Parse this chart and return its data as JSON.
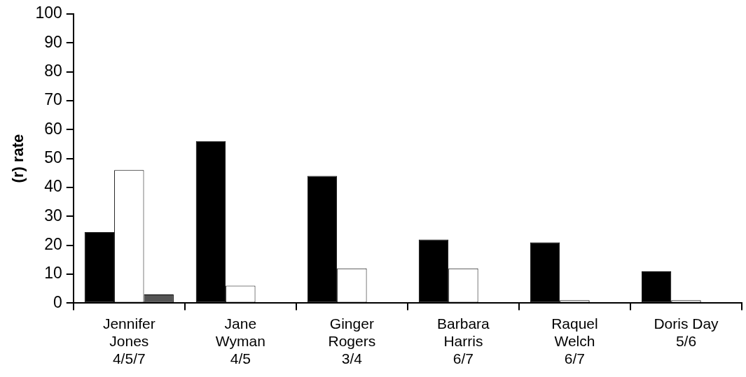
{
  "chart_data": {
    "type": "bar",
    "ylabel": "(r) rate",
    "categories": [
      "Jennifer\nJones\n4/5/7",
      "Jane\nWyman\n4/5",
      "Ginger\nRogers\n3/4",
      "Barbara\nHarris\n6/7",
      "Raquel\nWelch\n6/7",
      "Doris Day\n5/6"
    ],
    "series": [
      {
        "color": "#000000",
        "values": [
          24.5,
          56,
          44,
          22,
          21,
          11
        ]
      },
      {
        "color": "#ffffff",
        "values": [
          46,
          6,
          12,
          12,
          1,
          1
        ]
      },
      {
        "color": "#555555",
        "values": [
          3,
          null,
          null,
          null,
          null,
          null
        ]
      }
    ],
    "ylim": [
      0,
      100
    ],
    "yticks": [
      0,
      10,
      20,
      30,
      40,
      50,
      60,
      70,
      80,
      90,
      100
    ],
    "grid": false,
    "legend": false
  }
}
